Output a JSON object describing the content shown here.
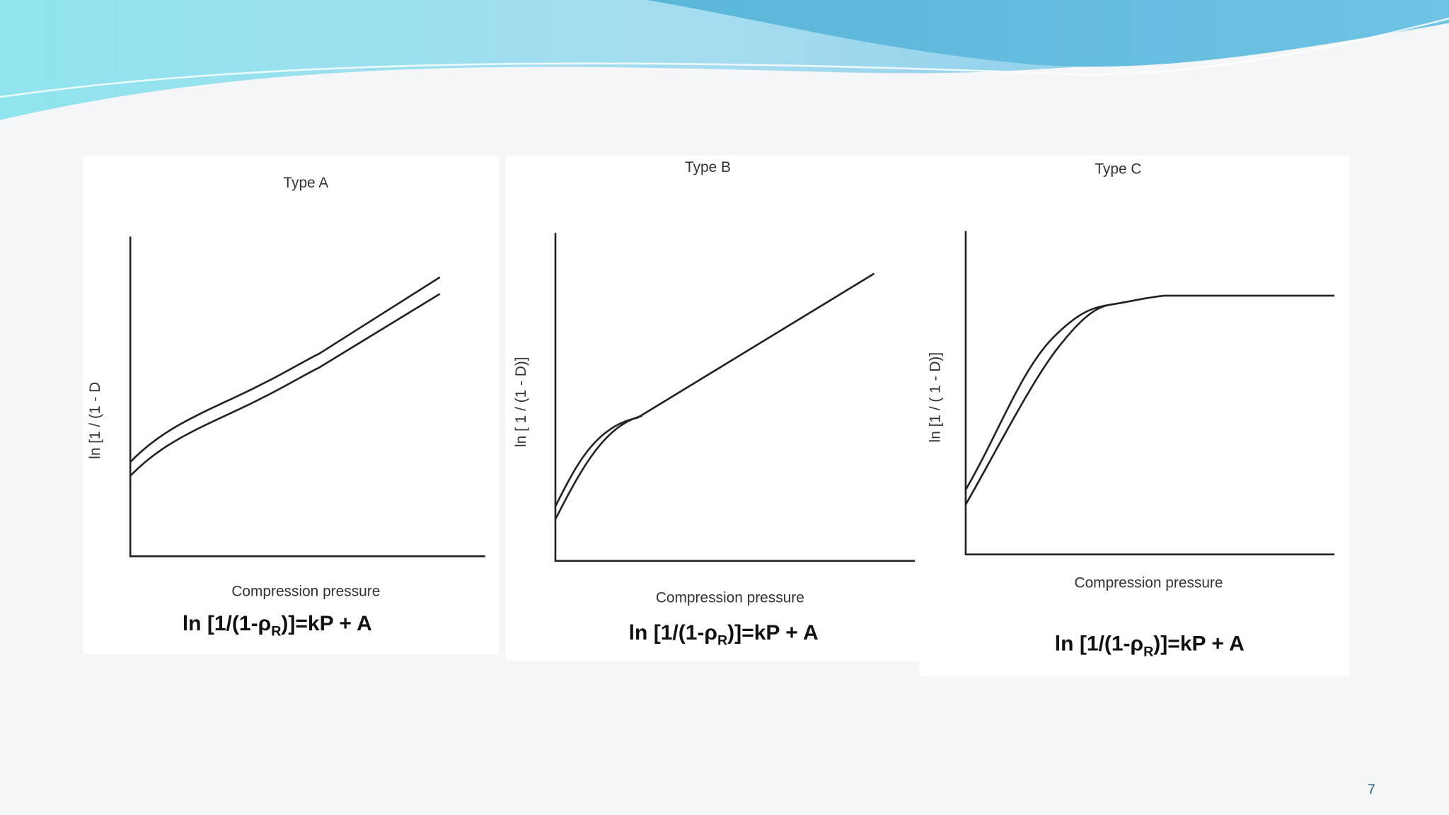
{
  "panels": [
    {
      "title": "Type A",
      "y_label": "ln [1 / (1 - D",
      "x_label": "Compression pressure",
      "equation": {
        "main": "ln [1/(1-ρ",
        "subscript": "R",
        "tail": ")]=kP + A"
      }
    },
    {
      "title": "Type B",
      "y_label": "ln [ 1 / (1 - D)]",
      "x_label": "Compression pressure",
      "equation": {
        "main": "ln [1/(1-ρ",
        "subscript": "R",
        "tail": ")]=kP + A"
      }
    },
    {
      "title": "Type C",
      "y_label": "ln [1 / ( 1 - D)]",
      "x_label": "Compression pressure",
      "equation": {
        "main": "ln [1/(1-ρ",
        "subscript": "R",
        "tail": ")]=kP + A"
      }
    }
  ],
  "page_number": "7"
}
